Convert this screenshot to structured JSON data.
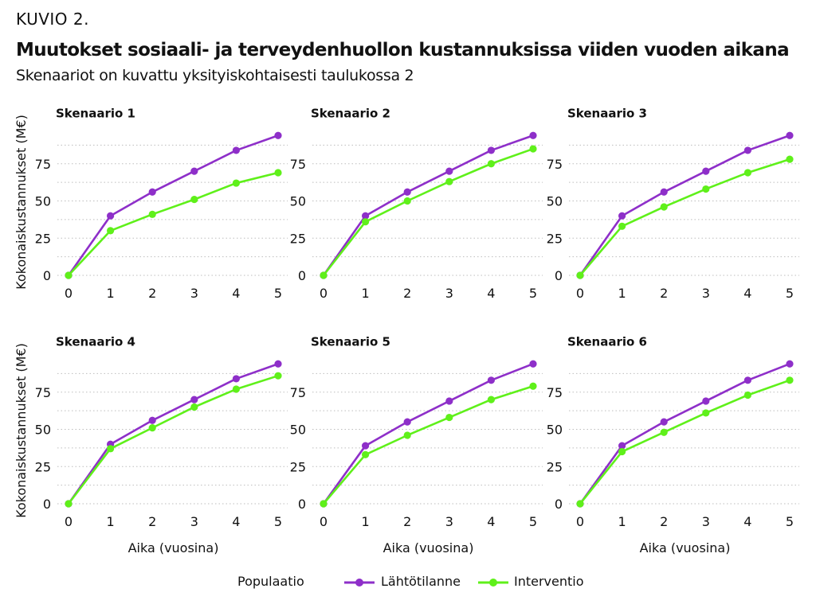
{
  "header": {
    "figure_label": "KUVIO 2.",
    "title": "Muutokset sosiaali- ja terveydenhuollon kustannuksissa viiden vuoden aikana",
    "subtitle": "Skenaariot on kuvattu yksityiskohtaisesti taulukossa 2"
  },
  "legend": {
    "title": "Populaatio",
    "items": [
      {
        "label": "Lähtötilanne",
        "color": "#8e2fc9"
      },
      {
        "label": "Interventio",
        "color": "#5ff01a"
      }
    ]
  },
  "chart_data": {
    "type": "line",
    "layout": "facet-grid 2x3",
    "xlabel": "Aika (vuosina)",
    "ylabel": "Kokonaiskustannukset (M€)",
    "x": [
      0,
      1,
      2,
      3,
      4,
      5
    ],
    "x_ticks": [
      "0",
      "1",
      "2",
      "3",
      "4",
      "5"
    ],
    "y_ticks": [
      "0",
      "25",
      "50",
      "75"
    ],
    "ylim": [
      0,
      95
    ],
    "grid": "horizontal dotted",
    "legend_position": "bottom",
    "panels": [
      {
        "title": "Skenaario 1",
        "series": [
          {
            "name": "Lähtötilanne",
            "color": "#8e2fc9",
            "values": [
              0,
              40,
              56,
              70,
              84,
              94
            ]
          },
          {
            "name": "Interventio",
            "color": "#5ff01a",
            "values": [
              0,
              30,
              41,
              51,
              62,
              69
            ]
          }
        ]
      },
      {
        "title": "Skenaario 2",
        "series": [
          {
            "name": "Lähtötilanne",
            "color": "#8e2fc9",
            "values": [
              0,
              40,
              56,
              70,
              84,
              94
            ]
          },
          {
            "name": "Interventio",
            "color": "#5ff01a",
            "values": [
              0,
              36,
              50,
              63,
              75,
              85
            ]
          }
        ]
      },
      {
        "title": "Skenaario 3",
        "series": [
          {
            "name": "Lähtötilanne",
            "color": "#8e2fc9",
            "values": [
              0,
              40,
              56,
              70,
              84,
              94
            ]
          },
          {
            "name": "Interventio",
            "color": "#5ff01a",
            "values": [
              0,
              33,
              46,
              58,
              69,
              78
            ]
          }
        ]
      },
      {
        "title": "Skenaario 4",
        "series": [
          {
            "name": "Lähtötilanne",
            "color": "#8e2fc9",
            "values": [
              0,
              40,
              56,
              70,
              84,
              94
            ]
          },
          {
            "name": "Interventio",
            "color": "#5ff01a",
            "values": [
              0,
              37,
              51,
              65,
              77,
              86
            ]
          }
        ]
      },
      {
        "title": "Skenaario 5",
        "series": [
          {
            "name": "Lähtötilanne",
            "color": "#8e2fc9",
            "values": [
              0,
              39,
              55,
              69,
              83,
              94
            ]
          },
          {
            "name": "Interventio",
            "color": "#5ff01a",
            "values": [
              0,
              33,
              46,
              58,
              70,
              79
            ]
          }
        ]
      },
      {
        "title": "Skenaario 6",
        "series": [
          {
            "name": "Lähtötilanne",
            "color": "#8e2fc9",
            "values": [
              0,
              39,
              55,
              69,
              83,
              94
            ]
          },
          {
            "name": "Interventio",
            "color": "#5ff01a",
            "values": [
              0,
              35,
              48,
              61,
              73,
              83
            ]
          }
        ]
      }
    ]
  }
}
